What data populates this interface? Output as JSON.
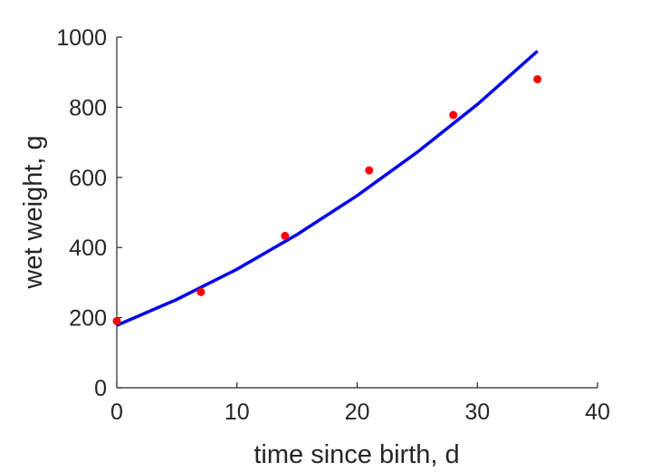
{
  "chart_data": {
    "type": "scatter",
    "xlabel": "time since birth, d",
    "ylabel": "wet weight, g",
    "xlim": [
      0,
      40
    ],
    "ylim": [
      0,
      1000
    ],
    "xticks": [
      0,
      10,
      20,
      30,
      40
    ],
    "yticks": [
      0,
      200,
      400,
      600,
      800,
      1000
    ],
    "grid": false,
    "series": [
      {
        "type": "scatter",
        "color": "#ff0000",
        "x": [
          0,
          7,
          14,
          21,
          28,
          35
        ],
        "y": [
          190,
          273,
          433,
          620,
          778,
          880
        ]
      },
      {
        "type": "line",
        "color": "#0000ee",
        "x": [
          0,
          5,
          10,
          15,
          20,
          25,
          30,
          35
        ],
        "y": [
          178,
          252,
          338,
          437,
          548,
          672,
          808,
          960
        ]
      }
    ]
  }
}
